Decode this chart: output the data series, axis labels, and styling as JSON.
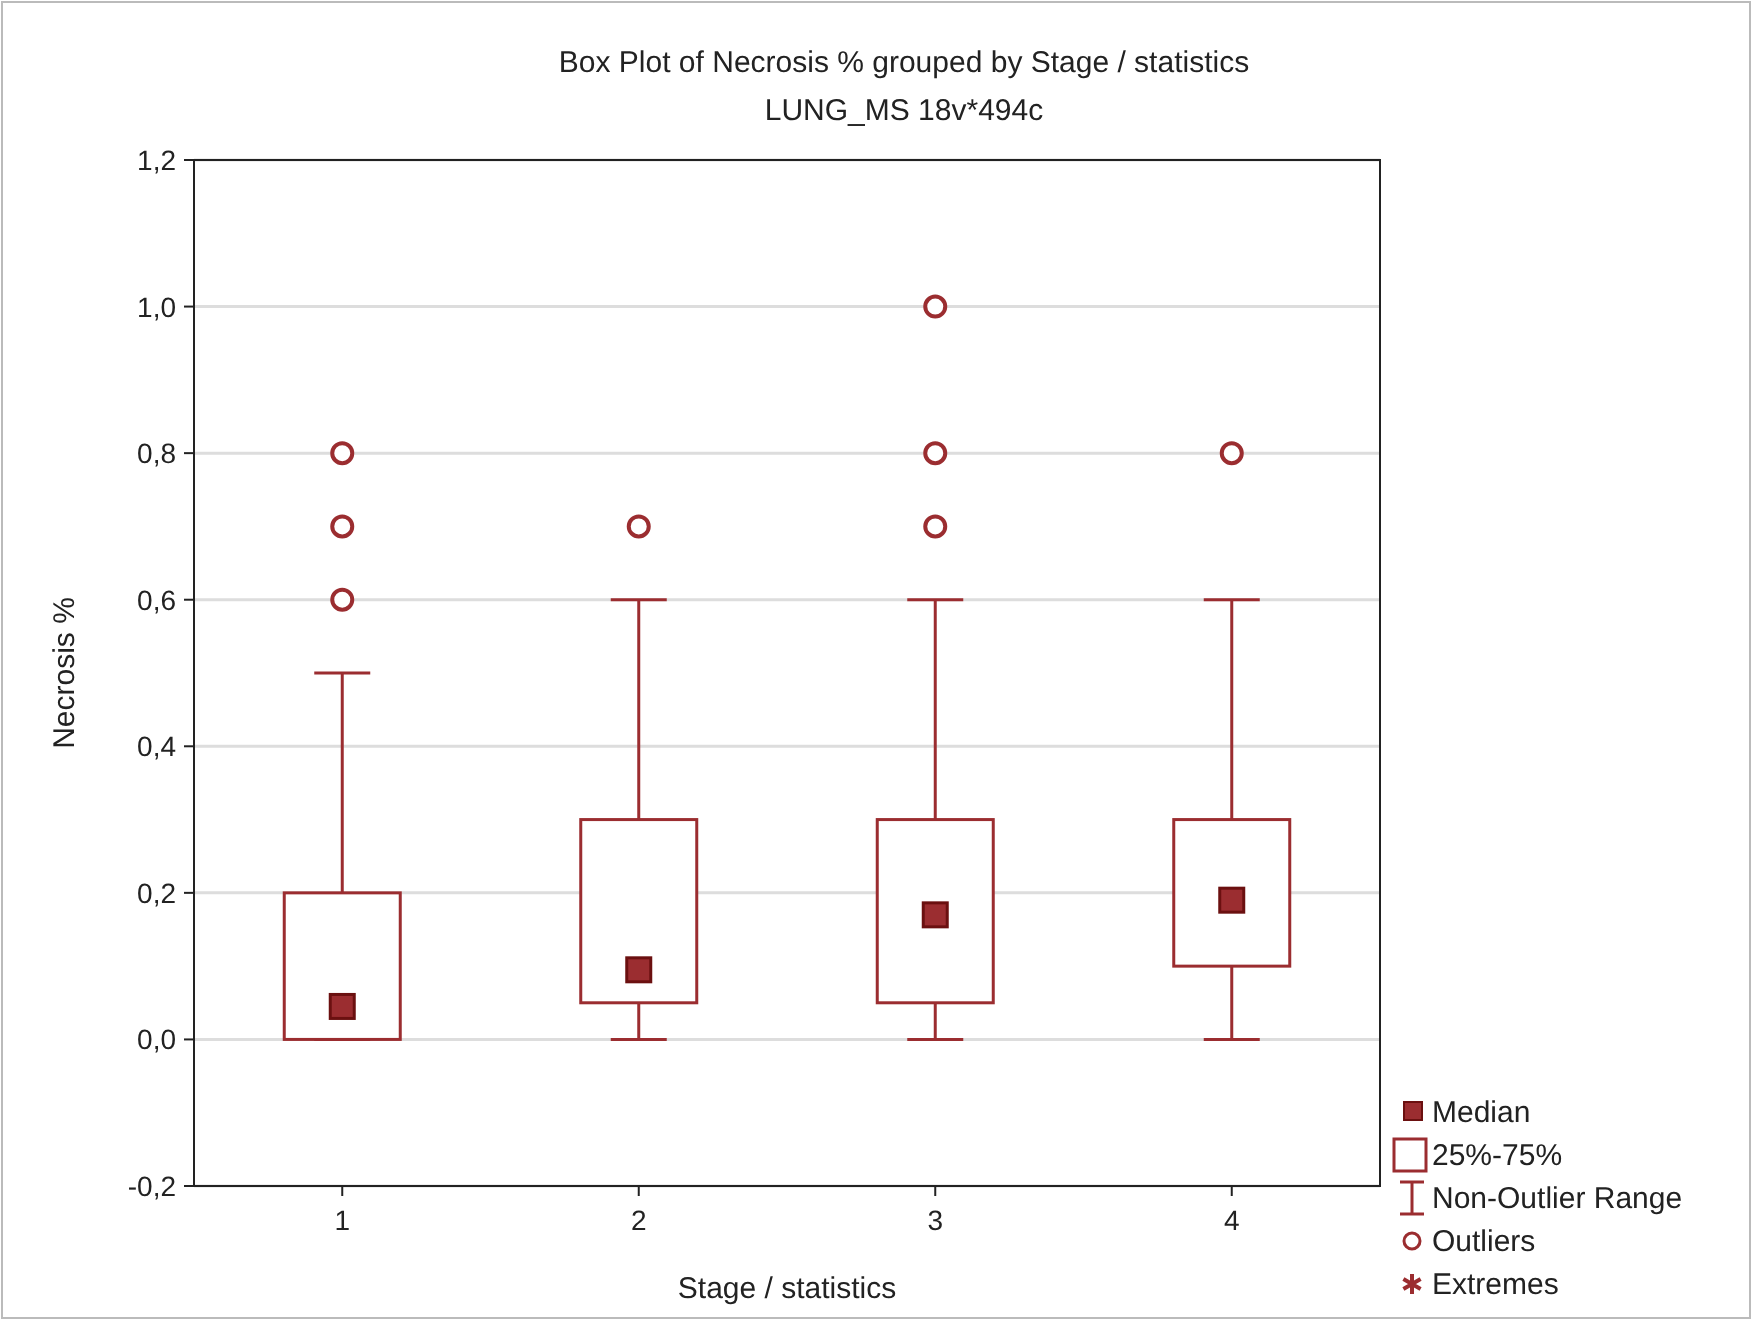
{
  "chart_data": {
    "type": "box",
    "title": "Box Plot of Necrosis % grouped by  Stage / statistics",
    "subtitle": "LUNG_MS 18v*494c",
    "xlabel": "Stage / statistics",
    "ylabel": "Necrosis %",
    "categories": [
      "1",
      "2",
      "3",
      "4"
    ],
    "boxes": [
      {
        "low": 0,
        "q1": 0,
        "median": 0.045,
        "q3": 0.2,
        "high": 0.5,
        "outliers": [
          0.6,
          0.7,
          0.8
        ]
      },
      {
        "low": 0,
        "q1": 0.05,
        "median": 0.095,
        "q3": 0.3,
        "high": 0.6,
        "outliers": [
          0.7
        ]
      },
      {
        "low": 0,
        "q1": 0.05,
        "median": 0.17,
        "q3": 0.3,
        "high": 0.6,
        "outliers": [
          0.7,
          0.8,
          1.0
        ]
      },
      {
        "low": 0,
        "q1": 0.1,
        "median": 0.19,
        "q3": 0.3,
        "high": 0.6,
        "outliers": [
          0.8
        ]
      }
    ],
    "color": "#9b2d30",
    "ylim": [
      -0.2,
      1.2
    ],
    "yticks": [
      {
        "value": -0.2,
        "label": "-0,2"
      },
      {
        "value": 0,
        "label": "0,0"
      },
      {
        "value": 0.2,
        "label": "0,2"
      },
      {
        "value": 0.4,
        "label": "0,4"
      },
      {
        "value": 0.6,
        "label": "0,6"
      },
      {
        "value": 0.8,
        "label": "0,8"
      },
      {
        "value": 1.0,
        "label": "1,0"
      },
      {
        "value": 1.2,
        "label": "1,2"
      }
    ],
    "grid": "y",
    "annotations": [
      "Median",
      "25%-75%",
      "Non-Outlier Range",
      "Outliers",
      "Extremes"
    ]
  }
}
